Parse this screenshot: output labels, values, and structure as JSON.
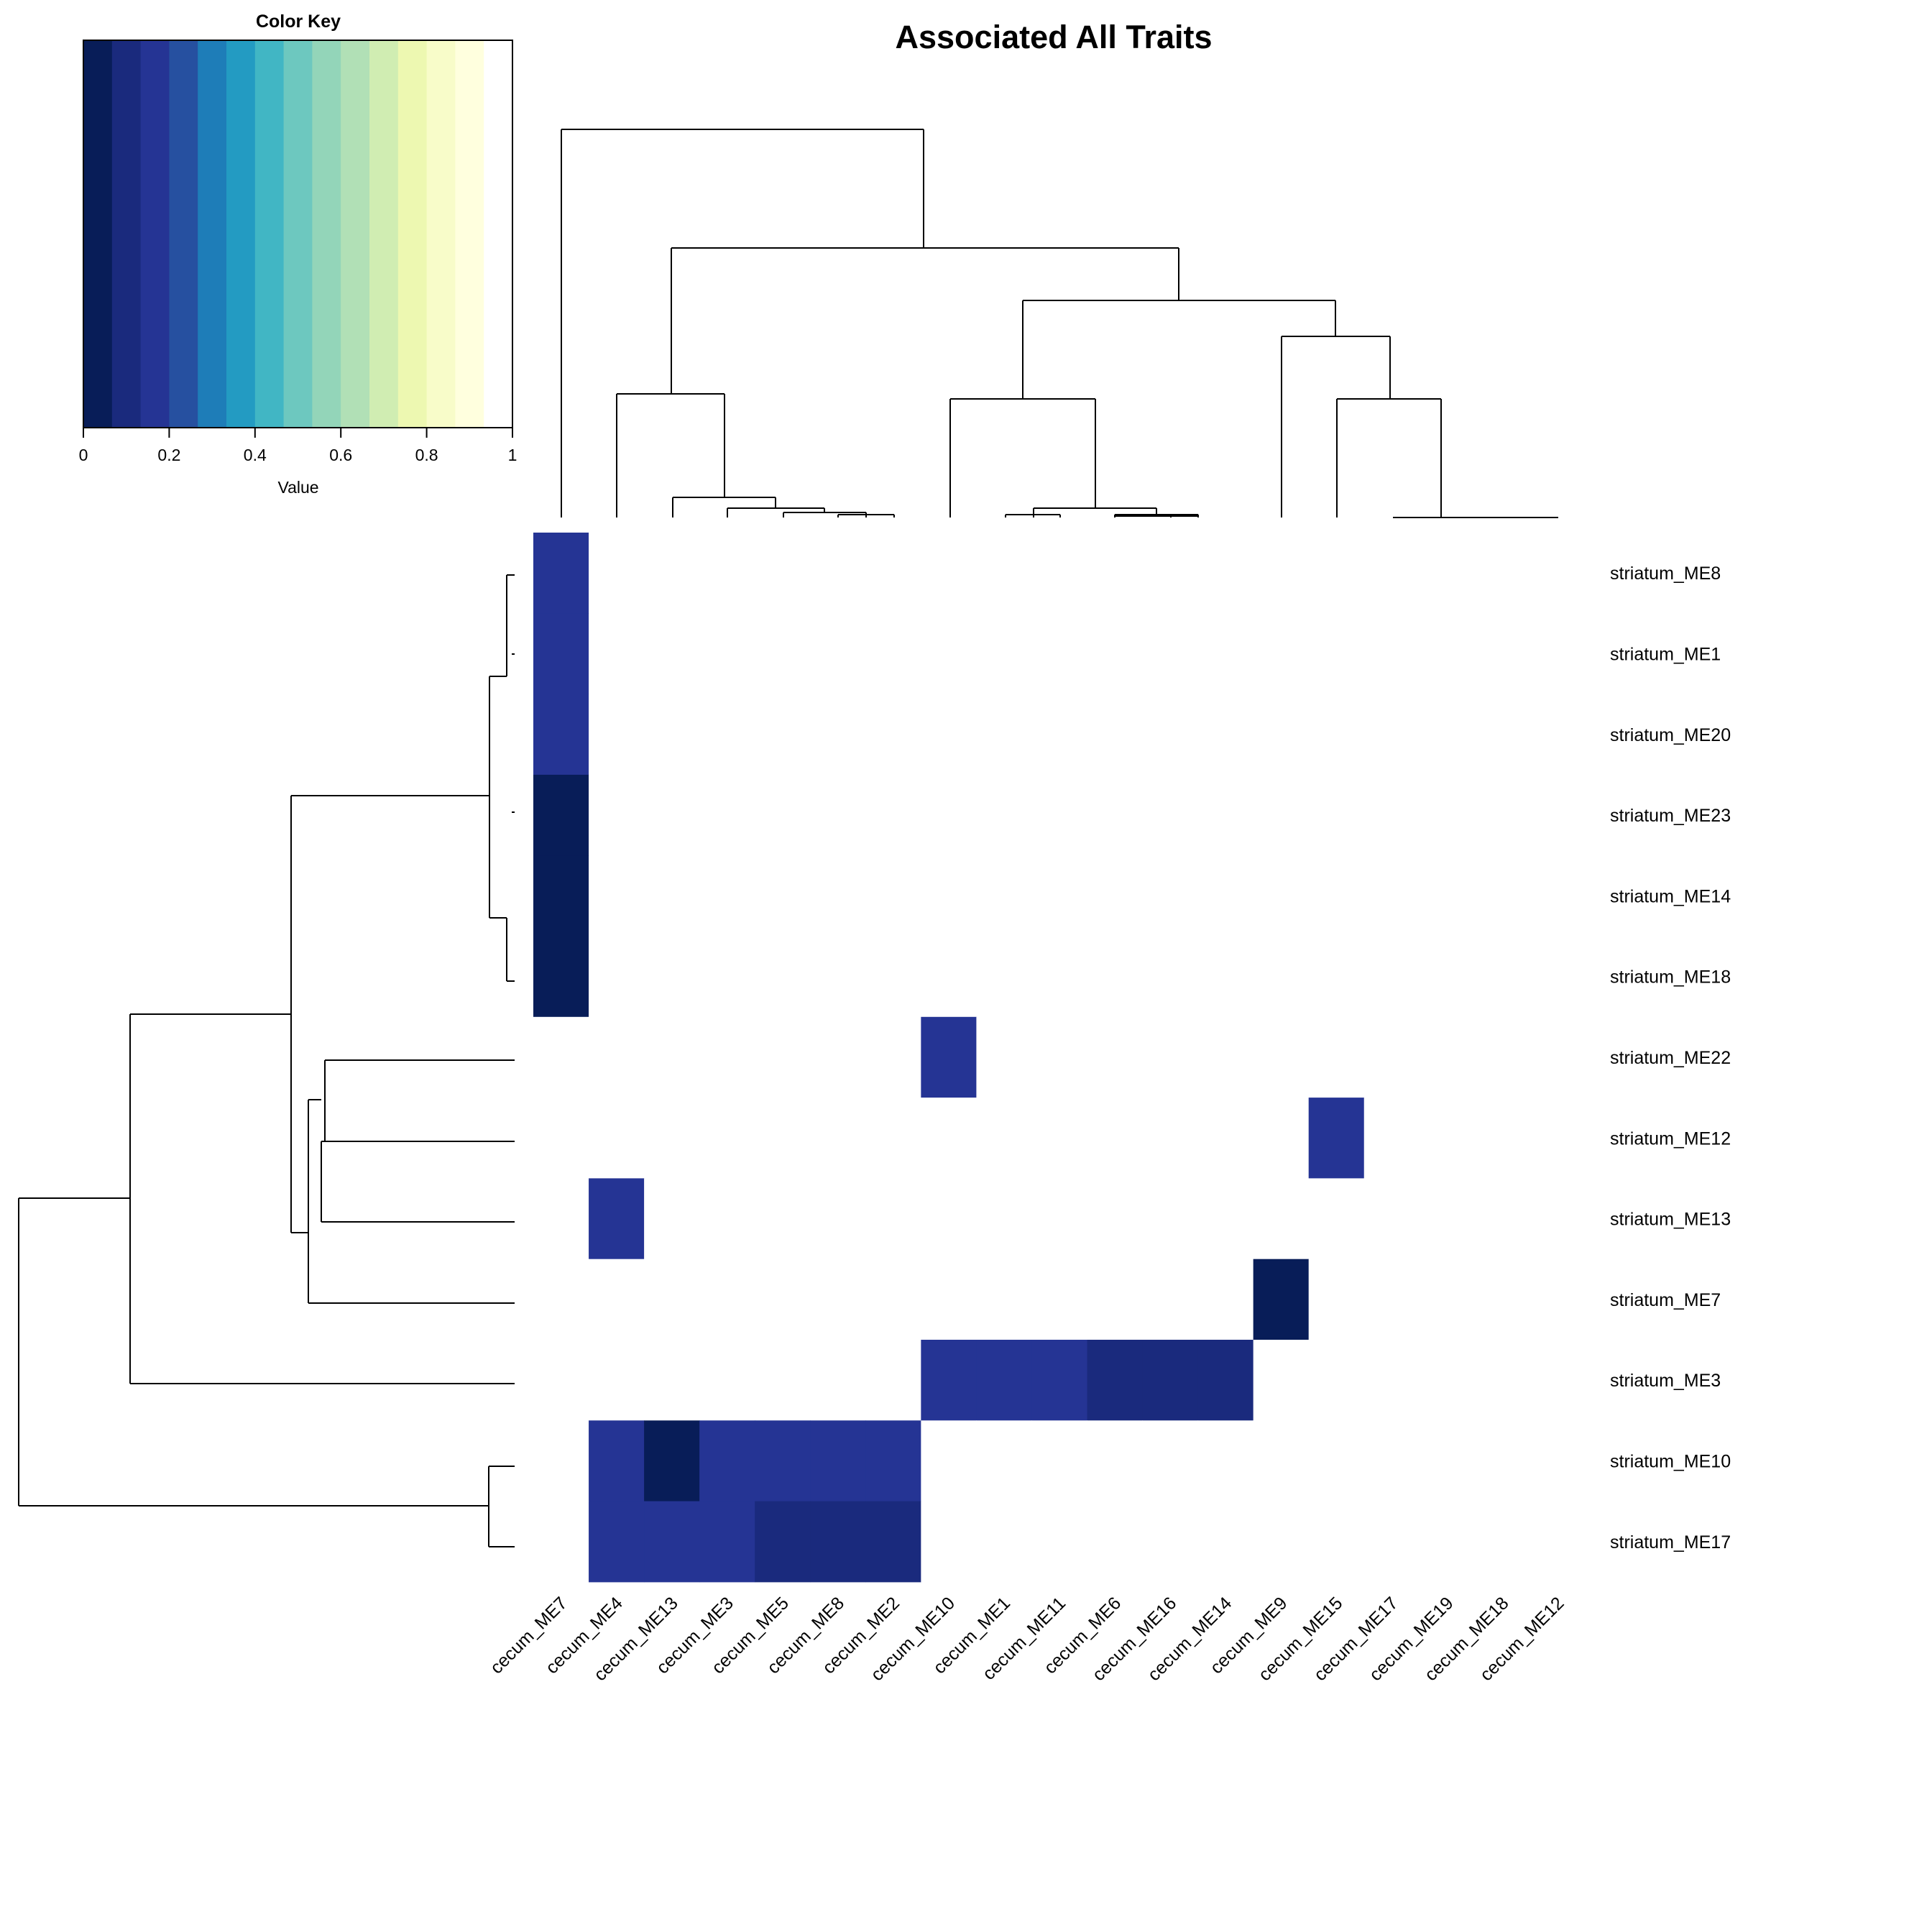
{
  "chart_data": {
    "type": "heatmap",
    "title": "Associated All Traits",
    "xlabel": "",
    "ylabel": "",
    "rows": [
      "striatum_ME8",
      "striatum_ME1",
      "striatum_ME20",
      "striatum_ME23",
      "striatum_ME14",
      "striatum_ME18",
      "striatum_ME22",
      "striatum_ME12",
      "striatum_ME13",
      "striatum_ME7",
      "striatum_ME3",
      "striatum_ME10",
      "striatum_ME17"
    ],
    "columns": [
      "cecum_ME7",
      "cecum_ME4",
      "cecum_ME13",
      "cecum_ME3",
      "cecum_ME5",
      "cecum_ME8",
      "cecum_ME2",
      "cecum_ME10",
      "cecum_ME1",
      "cecum_ME11",
      "cecum_ME6",
      "cecum_ME16",
      "cecum_ME14",
      "cecum_ME9",
      "cecum_ME15",
      "cecum_ME17",
      "cecum_ME19",
      "cecum_ME18",
      "cecum_ME12"
    ],
    "values": [
      [
        0.15,
        1,
        1,
        1,
        1,
        1,
        1,
        1,
        1,
        1,
        1,
        1,
        1,
        1,
        1,
        1,
        1,
        1,
        1
      ],
      [
        0.15,
        1,
        1,
        1,
        1,
        1,
        1,
        1,
        1,
        1,
        1,
        1,
        1,
        1,
        1,
        1,
        1,
        1,
        1
      ],
      [
        0.15,
        1,
        1,
        1,
        1,
        1,
        1,
        1,
        1,
        1,
        1,
        1,
        1,
        1,
        1,
        1,
        1,
        1,
        1
      ],
      [
        0.02,
        1,
        1,
        1,
        1,
        1,
        1,
        1,
        1,
        1,
        1,
        1,
        1,
        1,
        1,
        1,
        1,
        1,
        1
      ],
      [
        0.02,
        1,
        1,
        1,
        1,
        1,
        1,
        1,
        1,
        1,
        1,
        1,
        1,
        1,
        1,
        1,
        1,
        1,
        1
      ],
      [
        0.02,
        1,
        1,
        1,
        1,
        1,
        1,
        1,
        1,
        1,
        1,
        1,
        1,
        1,
        1,
        1,
        1,
        1,
        1
      ],
      [
        1,
        1,
        1,
        1,
        1,
        1,
        1,
        0.15,
        1,
        1,
        1,
        1,
        1,
        1,
        1,
        1,
        1,
        1,
        1
      ],
      [
        1,
        1,
        1,
        1,
        1,
        1,
        1,
        1,
        1,
        1,
        1,
        1,
        1,
        1,
        0.15,
        1,
        1,
        1,
        1
      ],
      [
        1,
        0.15,
        1,
        1,
        1,
        1,
        1,
        1,
        1,
        1,
        1,
        1,
        1,
        1,
        1,
        1,
        1,
        1,
        1
      ],
      [
        1,
        1,
        1,
        1,
        1,
        1,
        1,
        1,
        1,
        1,
        1,
        1,
        1,
        0.02,
        1,
        1,
        1,
        1,
        1
      ],
      [
        1,
        1,
        1,
        1,
        1,
        1,
        1,
        0.15,
        0.15,
        0.15,
        0.09,
        0.09,
        0.09,
        1,
        1,
        1,
        1,
        1,
        1
      ],
      [
        1,
        0.15,
        0.02,
        0.15,
        0.15,
        0.15,
        0.15,
        1,
        1,
        1,
        1,
        1,
        1,
        1,
        1,
        1,
        1,
        1,
        1
      ],
      [
        1,
        0.15,
        0.15,
        0.15,
        0.09,
        0.09,
        0.09,
        1,
        1,
        1,
        1,
        1,
        1,
        1,
        1,
        1,
        1,
        1,
        1
      ]
    ],
    "color_key": {
      "title": "Color Key",
      "xlabel": "Value",
      "ticks": [
        "0",
        "0.2",
        "0.4",
        "0.6",
        "0.8",
        "1"
      ],
      "range": [
        0,
        1
      ],
      "colors": [
        "#081d58",
        "#1a2a7d",
        "#253494",
        "#2650a0",
        "#1e7db8",
        "#239bc2",
        "#41b6c4",
        "#6dc8bf",
        "#93d5b9",
        "#b1e0b6",
        "#d0edb2",
        "#edf8b1",
        "#f8fcc9",
        "#ffffde",
        "#ffffff"
      ]
    },
    "column_dendrogram": true,
    "row_dendrogram": true
  }
}
